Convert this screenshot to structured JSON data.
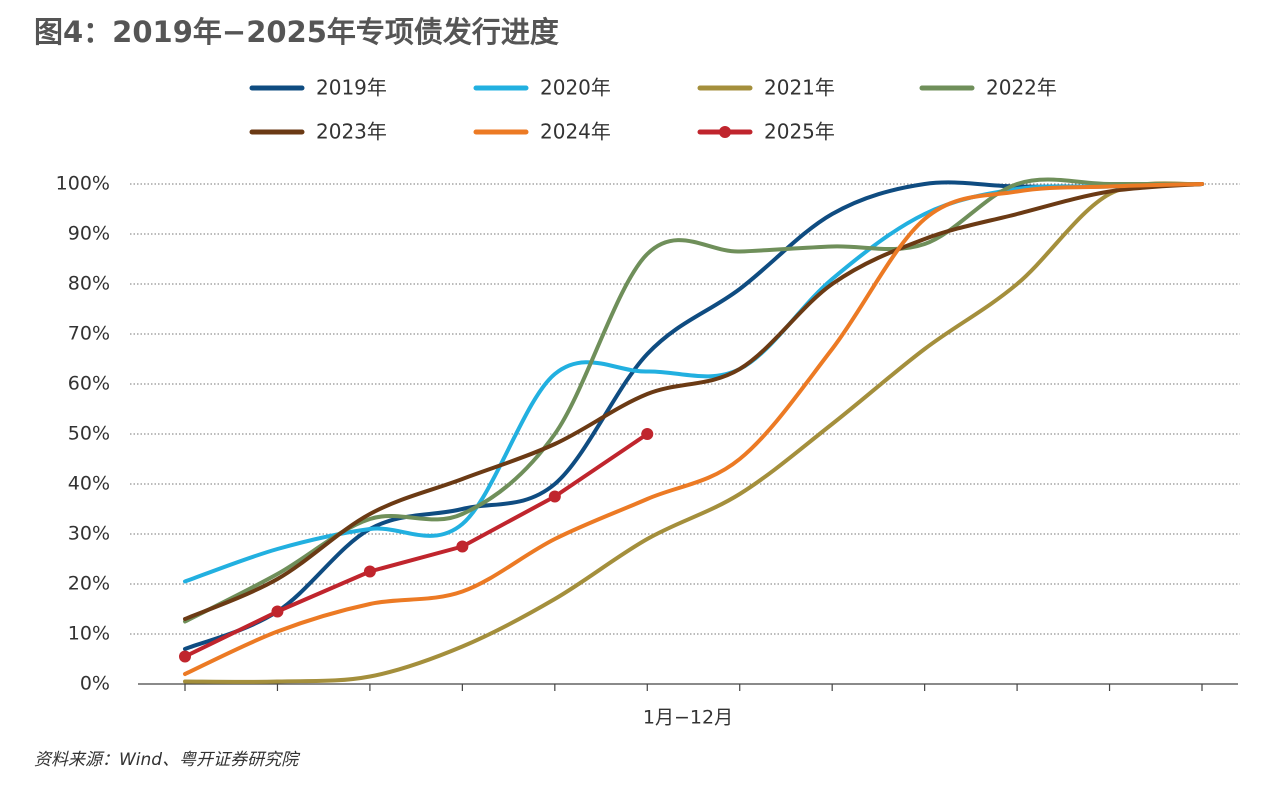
{
  "chart_data": {
    "type": "line",
    "title": "图4：2019年−2025年专项债发行进度",
    "x_label": "1月−12月",
    "source": "资料来源：Wind、粤开证券研究院",
    "categories": [
      null,
      null,
      null,
      null,
      null,
      null,
      null,
      null,
      null,
      null,
      null,
      null
    ],
    "ylim": [
      0,
      100
    ],
    "yticks": [
      {
        "value": 0,
        "label": "0%"
      },
      {
        "value": 10,
        "label": "10%"
      },
      {
        "value": 20,
        "label": "20%"
      },
      {
        "value": 30,
        "label": "30%"
      },
      {
        "value": 40,
        "label": "40%"
      },
      {
        "value": 50,
        "label": "50%"
      },
      {
        "value": 60,
        "label": "60%"
      },
      {
        "value": 70,
        "label": "70%"
      },
      {
        "value": 80,
        "label": "80%"
      },
      {
        "value": 90,
        "label": "90%"
      },
      {
        "value": 100,
        "label": "100%"
      }
    ],
    "grid": true,
    "legend": "top",
    "series": [
      {
        "name": "2019年",
        "color": "#0f4c81",
        "values": [
          7,
          14.5,
          31,
          35,
          40,
          66,
          79,
          94,
          100,
          99.5,
          99.5,
          100
        ]
      },
      {
        "name": "2020年",
        "color": "#22b0e0",
        "values": [
          20.5,
          27,
          31,
          32,
          62,
          62.5,
          63,
          81,
          94,
          99,
          99.5,
          100
        ]
      },
      {
        "name": "2021年",
        "color": "#a48f3c",
        "values": [
          0.5,
          0.5,
          1.5,
          7.5,
          17,
          29,
          38,
          52,
          67,
          80,
          98,
          100
        ]
      },
      {
        "name": "2022年",
        "color": "#6f8f5a",
        "values": [
          12.5,
          22,
          33,
          34,
          50,
          86,
          86.5,
          87.5,
          88,
          100,
          100,
          100
        ]
      },
      {
        "name": "2023年",
        "color": "#6b3a14",
        "values": [
          13,
          21,
          34,
          41,
          48,
          58,
          63,
          80,
          89,
          94,
          98.5,
          100
        ]
      },
      {
        "name": "2024年",
        "color": "#ec7a24",
        "values": [
          2,
          10.5,
          16,
          18.5,
          29,
          37,
          45,
          67,
          93,
          98.5,
          99.5,
          100
        ]
      },
      {
        "name": "2025年",
        "color": "#c0252d",
        "markers": true,
        "values": [
          5.5,
          14.5,
          22.5,
          27.5,
          37.5,
          50,
          null,
          null,
          null,
          null,
          null,
          null
        ]
      }
    ]
  }
}
